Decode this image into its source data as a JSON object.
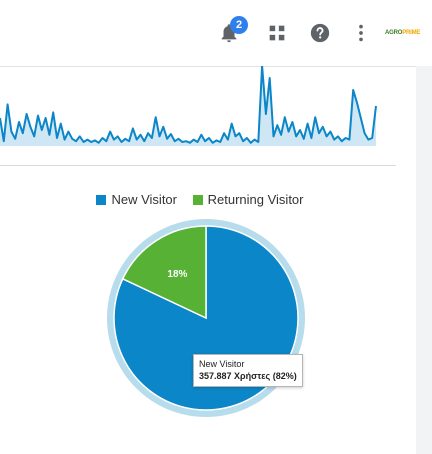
{
  "header": {
    "notification_count": "2",
    "logo_text_main": "AGRO",
    "logo_text_accent": "PRIME"
  },
  "legend": {
    "new_visitor": "New Visitor",
    "returning_visitor": "Returning Visitor"
  },
  "tooltip": {
    "title": "New Visitor",
    "value": "357.887 Χρήστες (82%)"
  },
  "colors": {
    "accent": "#0b86c8",
    "new_visitor": "#0b86c8",
    "returning_visitor": "#57b134",
    "sparkline_fill": "#cfe7f5"
  },
  "icons": [
    "bell-icon",
    "apps-grid-icon",
    "help-icon",
    "more-vert-icon"
  ],
  "chart_data": [
    {
      "type": "area",
      "title": "",
      "values": [
        35,
        6,
        52,
        18,
        9,
        30,
        16,
        40,
        24,
        12,
        38,
        20,
        35,
        14,
        42,
        10,
        28,
        8,
        18,
        9,
        6,
        12,
        5,
        8,
        5,
        7,
        4,
        10,
        6,
        18,
        8,
        12,
        5,
        9,
        6,
        22,
        8,
        14,
        6,
        16,
        10,
        36,
        12,
        24,
        9,
        15,
        6,
        9,
        5,
        6,
        4,
        8,
        5,
        14,
        6,
        10,
        4,
        7,
        5,
        16,
        8,
        28,
        12,
        16,
        6,
        10,
        4,
        8,
        5,
        100,
        40,
        85,
        12,
        26,
        14,
        36,
        18,
        30,
        12,
        20,
        9,
        28,
        10,
        36,
        16,
        24,
        12,
        18,
        8,
        12,
        6,
        10,
        8,
        70,
        54,
        35,
        16,
        8,
        10,
        50
      ]
    },
    {
      "type": "pie",
      "categories": [
        "New Visitor",
        "Returning Visitor"
      ],
      "values": [
        82,
        18
      ],
      "data_labels": [
        "",
        "18%"
      ]
    }
  ]
}
